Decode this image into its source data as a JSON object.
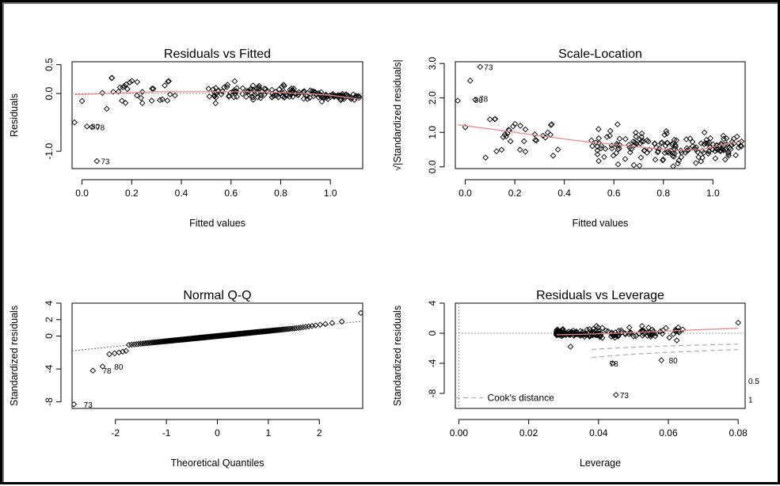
{
  "chart_data": [
    {
      "type": "scatter",
      "title": "Residuals vs Fitted",
      "xlabel": "Fitted values",
      "ylabel": "Residuals",
      "xlim": [
        -0.04,
        1.13
      ],
      "ylim": [
        -1.3,
        0.55
      ],
      "xticks": [
        "0.0",
        "0.2",
        "0.4",
        "0.6",
        "0.8",
        "1.0"
      ],
      "yticks": [
        "0.5",
        "0.0",
        "-1.0"
      ],
      "reference_line": 0,
      "smooth_color": "#e8888a",
      "annotations": [
        {
          "label": "80",
          "x": 0.02,
          "y": -0.57
        },
        {
          "label": "78",
          "x": 0.04,
          "y": -0.58
        },
        {
          "label": "73",
          "x": 0.06,
          "y": -1.17
        }
      ]
    },
    {
      "type": "scatter",
      "title": "Scale-Location",
      "xlabel": "Fitted values",
      "ylabel": "√|Standardized residuals|",
      "xlim": [
        -0.04,
        1.13
      ],
      "ylim": [
        -0.05,
        3.05
      ],
      "xticks": [
        "0.0",
        "0.2",
        "0.4",
        "0.6",
        "0.8",
        "1.0"
      ],
      "yticks": [
        "0.0",
        "1.0",
        "2.0",
        "3.0"
      ],
      "smooth_color": "#e8888a",
      "annotations": [
        {
          "label": "73",
          "x": 0.06,
          "y": 2.9
        },
        {
          "label": "80",
          "x": 0.02,
          "y": 1.95
        },
        {
          "label": "78",
          "x": 0.04,
          "y": 1.98
        }
      ]
    },
    {
      "type": "scatter",
      "title": "Normal Q-Q",
      "xlabel": "Theoretical Quantiles",
      "ylabel": "Standardized residuals",
      "xlim": [
        -2.85,
        2.85
      ],
      "ylim": [
        -8.8,
        4
      ],
      "xticks": [
        "-2",
        "-1",
        "0",
        "1",
        "2"
      ],
      "yticks": [
        "4",
        "2",
        "0",
        "-4",
        "-8"
      ],
      "reference_line": "qq",
      "annotations": [
        {
          "label": "78",
          "x": -2.33,
          "y": -4.2
        },
        {
          "label": "80",
          "x": -2.1,
          "y": -3.7
        },
        {
          "label": "73",
          "x": -2.7,
          "y": -8.3
        }
      ]
    },
    {
      "type": "scatter",
      "title": "Residuals vs Leverage",
      "xlabel": "Leverage",
      "ylabel": "Standardized residuals",
      "xlim": [
        -0.001,
        0.082
      ],
      "ylim": [
        -10,
        4
      ],
      "xticks": [
        "0.00",
        "0.02",
        "0.04",
        "0.06",
        "0.08"
      ],
      "yticks": [
        "4",
        "0",
        "-4",
        "-8"
      ],
      "reference_line": 0,
      "smooth_color": "#e8888a",
      "cooks_label": "Cook's distance",
      "contour_labels": [
        "0.5",
        "1"
      ],
      "annotations": [
        {
          "label": "78",
          "x": 0.042,
          "y": -4.0
        },
        {
          "label": "80",
          "x": 0.059,
          "y": -3.6
        },
        {
          "label": "73",
          "x": 0.045,
          "y": -8.2
        }
      ]
    }
  ]
}
